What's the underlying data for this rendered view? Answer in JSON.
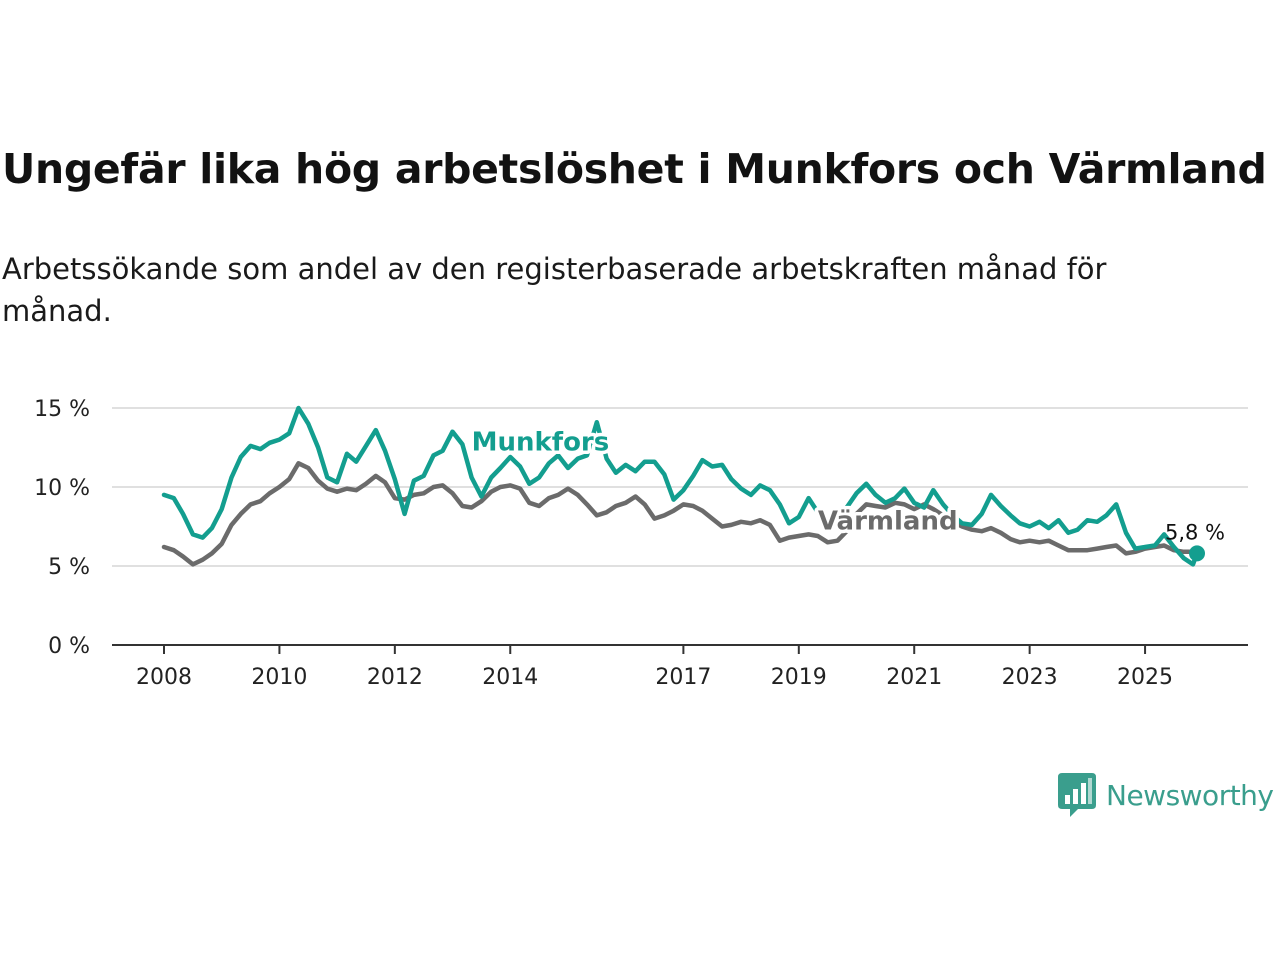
{
  "header": {
    "title": "Ungefär lika hög arbetslöshet i Munkfors och Värmland",
    "subtitle": "Arbetssökande som andel av den registerbaserade arbetskraften månad för månad."
  },
  "brand": {
    "name": "Newsworthy",
    "color": "#3a9e8d"
  },
  "chart_data": {
    "type": "line",
    "title": "Ungefär lika hög arbetslöshet i Munkfors och Värmland",
    "xlabel": "",
    "ylabel": "",
    "x_range": [
      2008,
      2025.9
    ],
    "ylim": [
      0,
      15
    ],
    "y_ticks": [
      0,
      5,
      10,
      15
    ],
    "y_tick_labels": [
      "0 %",
      "5 %",
      "10 %",
      "15 %"
    ],
    "x_ticks": [
      2008,
      2010,
      2012,
      2014,
      2017,
      2019,
      2021,
      2023,
      2025
    ],
    "x_tick_labels": [
      "2008",
      "2010",
      "2012",
      "2014",
      "2017",
      "2019",
      "2021",
      "2023",
      "2025"
    ],
    "grid": true,
    "end_label": "5,8 %",
    "series": [
      {
        "name": "Munkfors",
        "color": "#139e8f",
        "points": [
          [
            2008.0,
            9.5
          ],
          [
            2008.17,
            9.3
          ],
          [
            2008.33,
            8.3
          ],
          [
            2008.5,
            7.0
          ],
          [
            2008.67,
            6.8
          ],
          [
            2008.83,
            7.4
          ],
          [
            2009.0,
            8.6
          ],
          [
            2009.17,
            10.6
          ],
          [
            2009.33,
            11.9
          ],
          [
            2009.5,
            12.6
          ],
          [
            2009.67,
            12.4
          ],
          [
            2009.83,
            12.8
          ],
          [
            2010.0,
            13.0
          ],
          [
            2010.17,
            13.4
          ],
          [
            2010.33,
            15.0
          ],
          [
            2010.5,
            14.0
          ],
          [
            2010.67,
            12.5
          ],
          [
            2010.83,
            10.6
          ],
          [
            2011.0,
            10.3
          ],
          [
            2011.17,
            12.1
          ],
          [
            2011.33,
            11.6
          ],
          [
            2011.5,
            12.6
          ],
          [
            2011.67,
            13.6
          ],
          [
            2011.83,
            12.3
          ],
          [
            2012.0,
            10.5
          ],
          [
            2012.17,
            8.3
          ],
          [
            2012.33,
            10.4
          ],
          [
            2012.5,
            10.7
          ],
          [
            2012.67,
            12.0
          ],
          [
            2012.83,
            12.3
          ],
          [
            2013.0,
            13.5
          ],
          [
            2013.17,
            12.7
          ],
          [
            2013.33,
            10.6
          ],
          [
            2013.5,
            9.4
          ],
          [
            2013.67,
            10.6
          ],
          [
            2013.83,
            11.2
          ],
          [
            2014.0,
            11.9
          ],
          [
            2014.17,
            11.3
          ],
          [
            2014.33,
            10.2
          ],
          [
            2014.5,
            10.6
          ],
          [
            2014.67,
            11.5
          ],
          [
            2014.83,
            12.0
          ],
          [
            2015.0,
            11.2
          ],
          [
            2015.17,
            11.8
          ],
          [
            2015.33,
            12.0
          ],
          [
            2015.5,
            14.1
          ],
          [
            2015.67,
            11.8
          ],
          [
            2015.83,
            10.9
          ],
          [
            2016.0,
            11.4
          ],
          [
            2016.17,
            11.0
          ],
          [
            2016.33,
            11.6
          ],
          [
            2016.5,
            11.6
          ],
          [
            2016.67,
            10.8
          ],
          [
            2016.83,
            9.2
          ],
          [
            2017.0,
            9.8
          ],
          [
            2017.17,
            10.7
          ],
          [
            2017.33,
            11.7
          ],
          [
            2017.5,
            11.3
          ],
          [
            2017.67,
            11.4
          ],
          [
            2017.83,
            10.5
          ],
          [
            2018.0,
            9.9
          ],
          [
            2018.17,
            9.5
          ],
          [
            2018.33,
            10.1
          ],
          [
            2018.5,
            9.8
          ],
          [
            2018.67,
            8.9
          ],
          [
            2018.83,
            7.7
          ],
          [
            2019.0,
            8.1
          ],
          [
            2019.17,
            9.3
          ],
          [
            2019.33,
            8.4
          ],
          [
            2019.5,
            8.0
          ],
          [
            2019.67,
            8.3
          ],
          [
            2019.83,
            8.7
          ],
          [
            2020.0,
            9.6
          ],
          [
            2020.17,
            10.2
          ],
          [
            2020.33,
            9.5
          ],
          [
            2020.5,
            9.0
          ],
          [
            2020.67,
            9.3
          ],
          [
            2020.83,
            9.9
          ],
          [
            2021.0,
            9.0
          ],
          [
            2021.17,
            8.7
          ],
          [
            2021.33,
            9.8
          ],
          [
            2021.5,
            8.9
          ],
          [
            2021.67,
            8.2
          ],
          [
            2021.83,
            7.7
          ],
          [
            2022.0,
            7.6
          ],
          [
            2022.17,
            8.3
          ],
          [
            2022.33,
            9.5
          ],
          [
            2022.5,
            8.8
          ],
          [
            2022.67,
            8.2
          ],
          [
            2022.83,
            7.7
          ],
          [
            2023.0,
            7.5
          ],
          [
            2023.17,
            7.8
          ],
          [
            2023.33,
            7.4
          ],
          [
            2023.5,
            7.9
          ],
          [
            2023.67,
            7.1
          ],
          [
            2023.83,
            7.3
          ],
          [
            2024.0,
            7.9
          ],
          [
            2024.17,
            7.8
          ],
          [
            2024.33,
            8.2
          ],
          [
            2024.5,
            8.9
          ],
          [
            2024.67,
            7.1
          ],
          [
            2024.83,
            6.1
          ],
          [
            2025.0,
            6.2
          ],
          [
            2025.17,
            6.3
          ],
          [
            2025.33,
            7.0
          ],
          [
            2025.5,
            6.2
          ],
          [
            2025.67,
            5.5
          ],
          [
            2025.83,
            5.1
          ],
          [
            2025.9,
            5.8
          ]
        ]
      },
      {
        "name": "Värmland",
        "color": "#6b6b6b",
        "points": [
          [
            2008.0,
            6.2
          ],
          [
            2008.17,
            6.0
          ],
          [
            2008.33,
            5.6
          ],
          [
            2008.5,
            5.1
          ],
          [
            2008.67,
            5.4
          ],
          [
            2008.83,
            5.8
          ],
          [
            2009.0,
            6.4
          ],
          [
            2009.17,
            7.6
          ],
          [
            2009.33,
            8.3
          ],
          [
            2009.5,
            8.9
          ],
          [
            2009.67,
            9.1
          ],
          [
            2009.83,
            9.6
          ],
          [
            2010.0,
            10.0
          ],
          [
            2010.17,
            10.5
          ],
          [
            2010.33,
            11.5
          ],
          [
            2010.5,
            11.2
          ],
          [
            2010.67,
            10.4
          ],
          [
            2010.83,
            9.9
          ],
          [
            2011.0,
            9.7
          ],
          [
            2011.17,
            9.9
          ],
          [
            2011.33,
            9.8
          ],
          [
            2011.5,
            10.2
          ],
          [
            2011.67,
            10.7
          ],
          [
            2011.83,
            10.3
          ],
          [
            2012.0,
            9.3
          ],
          [
            2012.17,
            9.2
          ],
          [
            2012.33,
            9.5
          ],
          [
            2012.5,
            9.6
          ],
          [
            2012.67,
            10.0
          ],
          [
            2012.83,
            10.1
          ],
          [
            2013.0,
            9.6
          ],
          [
            2013.17,
            8.8
          ],
          [
            2013.33,
            8.7
          ],
          [
            2013.5,
            9.1
          ],
          [
            2013.67,
            9.7
          ],
          [
            2013.83,
            10.0
          ],
          [
            2014.0,
            10.1
          ],
          [
            2014.17,
            9.9
          ],
          [
            2014.33,
            9.0
          ],
          [
            2014.5,
            8.8
          ],
          [
            2014.67,
            9.3
          ],
          [
            2014.83,
            9.5
          ],
          [
            2015.0,
            9.9
          ],
          [
            2015.17,
            9.5
          ],
          [
            2015.33,
            8.9
          ],
          [
            2015.5,
            8.2
          ],
          [
            2015.67,
            8.4
          ],
          [
            2015.83,
            8.8
          ],
          [
            2016.0,
            9.0
          ],
          [
            2016.17,
            9.4
          ],
          [
            2016.33,
            8.9
          ],
          [
            2016.5,
            8.0
          ],
          [
            2016.67,
            8.2
          ],
          [
            2016.83,
            8.5
          ],
          [
            2017.0,
            8.9
          ],
          [
            2017.17,
            8.8
          ],
          [
            2017.33,
            8.5
          ],
          [
            2017.5,
            8.0
          ],
          [
            2017.67,
            7.5
          ],
          [
            2017.83,
            7.6
          ],
          [
            2018.0,
            7.8
          ],
          [
            2018.17,
            7.7
          ],
          [
            2018.33,
            7.9
          ],
          [
            2018.5,
            7.6
          ],
          [
            2018.67,
            6.6
          ],
          [
            2018.83,
            6.8
          ],
          [
            2019.0,
            6.9
          ],
          [
            2019.17,
            7.0
          ],
          [
            2019.33,
            6.9
          ],
          [
            2019.5,
            6.5
          ],
          [
            2019.67,
            6.6
          ],
          [
            2019.83,
            7.2
          ],
          [
            2020.0,
            8.3
          ],
          [
            2020.17,
            8.9
          ],
          [
            2020.33,
            8.8
          ],
          [
            2020.5,
            8.7
          ],
          [
            2020.67,
            9.0
          ],
          [
            2020.83,
            8.9
          ],
          [
            2021.0,
            8.6
          ],
          [
            2021.17,
            8.9
          ],
          [
            2021.33,
            8.6
          ],
          [
            2021.5,
            8.2
          ],
          [
            2021.67,
            7.8
          ],
          [
            2021.83,
            7.5
          ],
          [
            2022.0,
            7.3
          ],
          [
            2022.17,
            7.2
          ],
          [
            2022.33,
            7.4
          ],
          [
            2022.5,
            7.1
          ],
          [
            2022.67,
            6.7
          ],
          [
            2022.83,
            6.5
          ],
          [
            2023.0,
            6.6
          ],
          [
            2023.17,
            6.5
          ],
          [
            2023.33,
            6.6
          ],
          [
            2023.5,
            6.3
          ],
          [
            2023.67,
            6.0
          ],
          [
            2023.83,
            6.0
          ],
          [
            2024.0,
            6.0
          ],
          [
            2024.17,
            6.1
          ],
          [
            2024.33,
            6.2
          ],
          [
            2024.5,
            6.3
          ],
          [
            2024.67,
            5.8
          ],
          [
            2024.83,
            5.9
          ],
          [
            2025.0,
            6.1
          ],
          [
            2025.17,
            6.2
          ],
          [
            2025.33,
            6.3
          ],
          [
            2025.5,
            6.0
          ],
          [
            2025.67,
            5.9
          ],
          [
            2025.83,
            5.9
          ],
          [
            2025.9,
            5.8
          ]
        ]
      }
    ]
  }
}
